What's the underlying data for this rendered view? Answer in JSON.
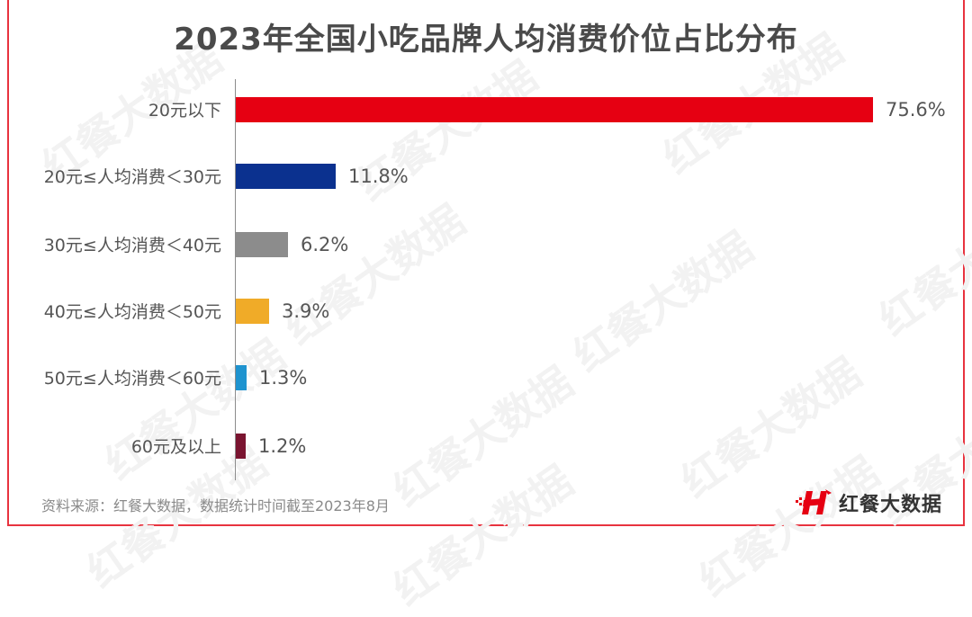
{
  "title": "2023年全国小吃品牌人均消费价位占比分布",
  "source": "资料来源：红餐大数据，数据统计时间截至2023年8月",
  "logo": {
    "icon": "hongcan-h-logo-icon",
    "text": "红餐大数据",
    "color": "#e60012"
  },
  "watermark": "红餐大数据",
  "frame_color": "#e8333f",
  "chart_data": {
    "type": "bar",
    "orientation": "horizontal",
    "title": "2023年全国小吃品牌人均消费价位占比分布",
    "xlabel": "",
    "ylabel": "",
    "unit": "%",
    "grid": false,
    "legend": null,
    "categories": [
      "20元以下",
      "20元≤人均消费＜30元",
      "30元≤人均消费＜40元",
      "40元≤人均消费＜50元",
      "50元≤人均消费＜60元",
      "60元及以上"
    ],
    "values": [
      75.6,
      11.8,
      6.2,
      3.9,
      1.3,
      1.2
    ],
    "value_labels": [
      "75.6%",
      "11.8%",
      "6.2%",
      "3.9%",
      "1.3%",
      "1.2%"
    ],
    "colors": [
      "#e60012",
      "#0b318f",
      "#8c8c8c",
      "#f0ab28",
      "#1e93cf",
      "#7a1430"
    ],
    "xlim": [
      0,
      75.6
    ]
  }
}
